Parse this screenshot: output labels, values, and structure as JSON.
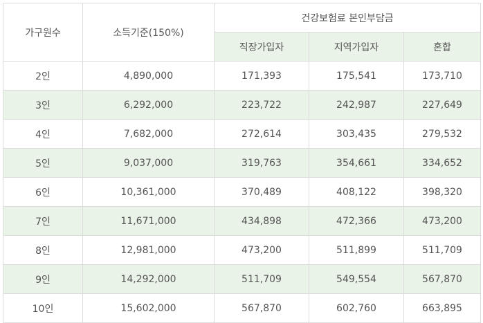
{
  "table": {
    "headers": {
      "household": "가구원수",
      "income": "소득기준(150%)",
      "premium_group": "건강보험료 본인부담금",
      "employee": "직장가입자",
      "regional": "지역가입자",
      "mixed": "혼합"
    },
    "rows": [
      {
        "household": "2인",
        "income": "4,890,000",
        "employee": "171,393",
        "regional": "175,541",
        "mixed": "173,710"
      },
      {
        "household": "3인",
        "income": "6,292,000",
        "employee": "223,722",
        "regional": "242,987",
        "mixed": "227,649"
      },
      {
        "household": "4인",
        "income": "7,682,000",
        "employee": "272,614",
        "regional": "303,435",
        "mixed": "279,532"
      },
      {
        "household": "5인",
        "income": "9,037,000",
        "employee": "319,763",
        "regional": "354,661",
        "mixed": "334,652"
      },
      {
        "household": "6인",
        "income": "10,361,000",
        "employee": "370,489",
        "regional": "408,122",
        "mixed": "398,320"
      },
      {
        "household": "7인",
        "income": "11,671,000",
        "employee": "434,898",
        "regional": "472,366",
        "mixed": "473,200"
      },
      {
        "household": "8인",
        "income": "12,981,000",
        "employee": "473,200",
        "regional": "511,899",
        "mixed": "511,709"
      },
      {
        "household": "9인",
        "income": "14,292,000",
        "employee": "511,709",
        "regional": "549,554",
        "mixed": "567,870"
      },
      {
        "household": "10인",
        "income": "15,602,000",
        "employee": "567,870",
        "regional": "602,760",
        "mixed": "663,895"
      }
    ]
  }
}
